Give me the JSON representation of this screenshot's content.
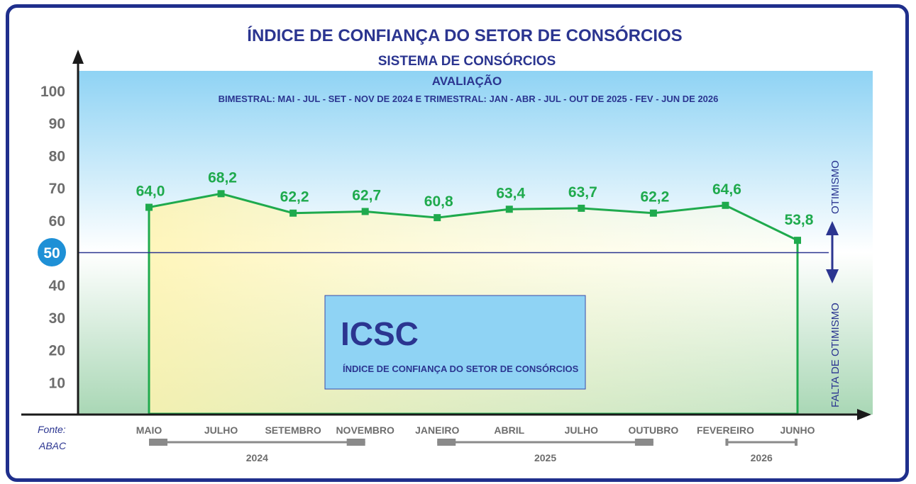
{
  "chart_data": {
    "type": "line",
    "title": "ÍNDICE DE CONFIANÇA DO SETOR DE CONSÓRCIOS",
    "subtitle": "SISTEMA DE CONSÓRCIOS",
    "caption_title": "AVALIAÇÃO",
    "caption_detail": "BIMESTRAL: MAI - JUL - SET - NOV DE 2024 E TRIMESTRAL: JAN - ABR - JUL - OUT DE 2025 - FEV - JUN DE 2026",
    "categories": [
      "MAIO",
      "JULHO",
      "SETEMBRO",
      "NOVEMBRO",
      "JANEIRO",
      "ABRIL",
      "JULHO",
      "OUTUBRO",
      "FEVEREIRO",
      "JUNHO"
    ],
    "values": [
      64.0,
      68.2,
      62.2,
      62.7,
      60.8,
      63.4,
      63.7,
      62.2,
      64.6,
      53.8
    ],
    "value_labels": [
      "64,0",
      "68,2",
      "62,2",
      "62,7",
      "60,8",
      "63,4",
      "63,7",
      "62,2",
      "64,6",
      "53,8"
    ],
    "yticks": [
      "10",
      "20",
      "30",
      "40",
      "50",
      "60",
      "70",
      "80",
      "90",
      "100"
    ],
    "ylim": [
      0,
      100
    ],
    "reference_line": 50,
    "reference_label": "50",
    "years": [
      {
        "label": "2024",
        "from": 0,
        "to": 3
      },
      {
        "label": "2025",
        "from": 4,
        "to": 7
      },
      {
        "label": "2026",
        "from": 8,
        "to": 9
      }
    ],
    "side_label_upper": "OTIMISMO",
    "side_label_lower": "FALTA DE OTIMISMO",
    "source_line1": "Fonte:",
    "source_line2": "ABAC",
    "box_title": "ICSC",
    "box_subtitle": "ÍNDICE DE CONFIANÇA DO SETOR DE CONSÓRCIOS",
    "colors": {
      "line": "#1faa4d",
      "title": "#2b3590",
      "reference": "#2b3590",
      "frame": "#1f2f8c",
      "box_fill": "#8fd3f4"
    }
  }
}
